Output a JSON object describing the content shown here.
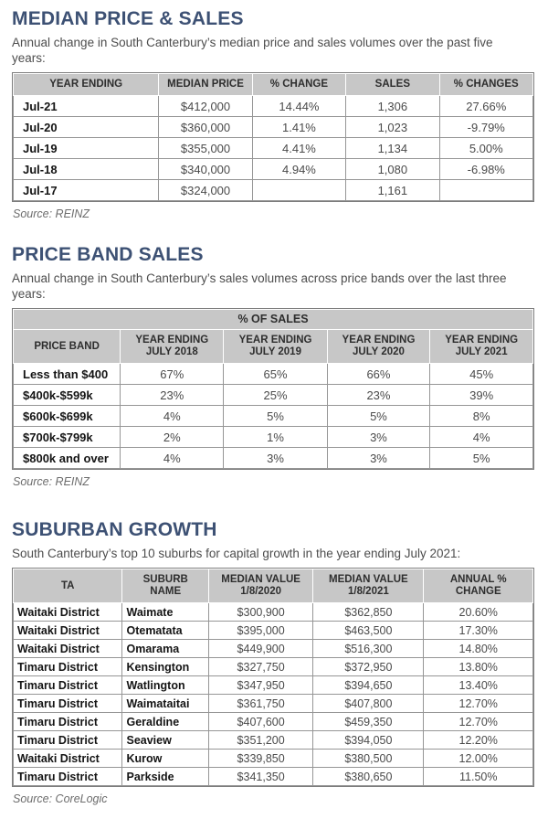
{
  "colors": {
    "heading": "#3d5174",
    "table_header_bg": "#c7c7c7"
  },
  "sections": [
    {
      "title": "MEDIAN PRICE & SALES",
      "subtitle": "Annual change in South Canterbury’s median price and sales volumes over the past five years:",
      "source": "Source: REINZ",
      "table": {
        "headers": [
          "YEAR ENDING",
          "MEDIAN PRICE",
          "% CHANGE",
          "SALES",
          "% CHANGES"
        ],
        "label_cols": [
          0
        ],
        "rows": [
          [
            "Jul-21",
            "$412,000",
            "14.44%",
            "1,306",
            "27.66%"
          ],
          [
            "Jul-20",
            "$360,000",
            "1.41%",
            "1,023",
            "-9.79%"
          ],
          [
            "Jul-19",
            "$355,000",
            "4.41%",
            "1,134",
            "5.00%"
          ],
          [
            "Jul-18",
            "$340,000",
            "4.94%",
            "1,080",
            "-6.98%"
          ],
          [
            "Jul-17",
            "$324,000",
            "",
            "1,161",
            ""
          ]
        ]
      }
    },
    {
      "title": "PRICE BAND SALES",
      "subtitle": "Annual change in South Canterbury’s sales volumes across price bands over the last three years:",
      "source": "Source: REINZ",
      "table": {
        "group_header": "% OF SALES",
        "headers": [
          "PRICE BAND",
          "YEAR ENDING\nJULY 2018",
          "YEAR ENDING\nJULY 2019",
          "YEAR ENDING\nJULY 2020",
          "YEAR ENDING\nJULY 2021"
        ],
        "label_cols": [
          0
        ],
        "rows": [
          [
            "Less than $400",
            "67%",
            "65%",
            "66%",
            "45%"
          ],
          [
            "$400k-$599k",
            "23%",
            "25%",
            "23%",
            "39%"
          ],
          [
            "$600k-$699k",
            "4%",
            "5%",
            "5%",
            "8%"
          ],
          [
            "$700k-$799k",
            "2%",
            "1%",
            "3%",
            "4%"
          ],
          [
            "$800k and over",
            "4%",
            "3%",
            "3%",
            "5%"
          ]
        ]
      }
    },
    {
      "title": "SUBURBAN GROWTH",
      "subtitle": "South Canterbury’s top 10 suburbs for capital growth in the year ending July 2021:",
      "source": "Source: CoreLogic",
      "table": {
        "headers": [
          "TA",
          "SUBURB\nNAME",
          "MEDIAN VALUE\n1/8/2020",
          "MEDIAN VALUE\n1/8/2021",
          "ANNUAL %\nCHANGE"
        ],
        "label_cols": [
          0,
          1
        ],
        "rows": [
          [
            "Waitaki District",
            "Waimate",
            "$300,900",
            "$362,850",
            "20.60%"
          ],
          [
            "Waitaki District",
            "Otematata",
            "$395,000",
            "$463,500",
            "17.30%"
          ],
          [
            "Waitaki District",
            "Omarama",
            "$449,900",
            "$516,300",
            "14.80%"
          ],
          [
            "Timaru District",
            "Kensington",
            "$327,750",
            "$372,950",
            "13.80%"
          ],
          [
            "Timaru District",
            "Watlington",
            "$347,950",
            "$394,650",
            "13.40%"
          ],
          [
            "Timaru District",
            "Waimataitai",
            "$361,750",
            "$407,800",
            "12.70%"
          ],
          [
            "Timaru District",
            "Geraldine",
            "$407,600",
            "$459,350",
            "12.70%"
          ],
          [
            "Timaru District",
            "Seaview",
            "$351,200",
            "$394,050",
            "12.20%"
          ],
          [
            "Waitaki District",
            "Kurow",
            "$339,850",
            "$380,500",
            "12.00%"
          ],
          [
            "Timaru District",
            "Parkside",
            "$341,350",
            "$380,650",
            "11.50%"
          ]
        ]
      }
    }
  ]
}
